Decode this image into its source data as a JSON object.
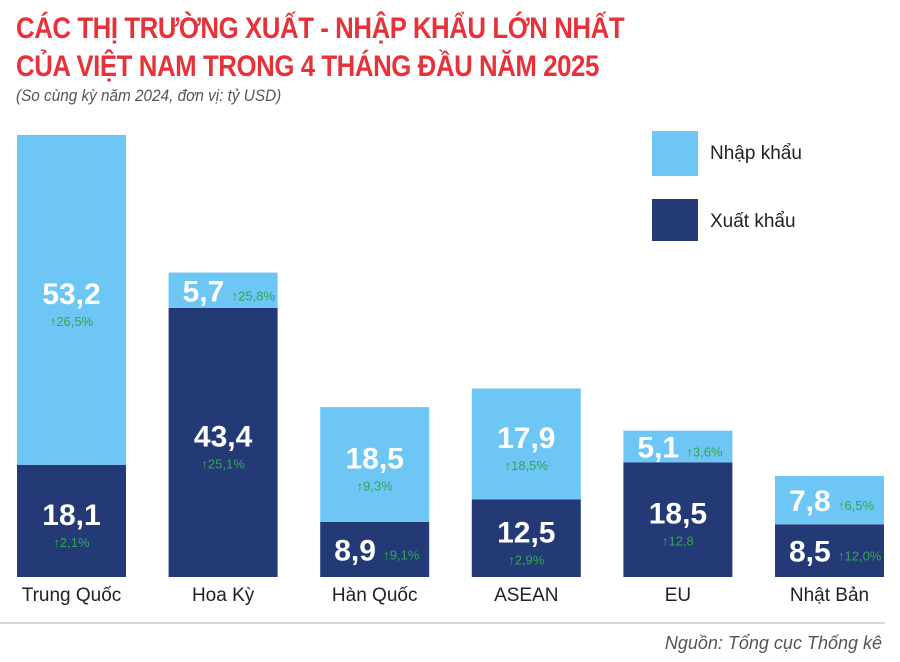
{
  "title_line1": "CÁC THỊ TRƯỜNG XUẤT - NHẬP KHẨU LỚN NHẤT",
  "title_line2": "CỦA VIỆT NAM TRONG 4 THÁNG ĐẦU NĂM 2025",
  "subtitle": "(So cùng kỳ năm 2024, đơn vị: tỷ USD)",
  "source": "Nguồn: Tổng cục Thống kê",
  "colors": {
    "title": "#e8323a",
    "import": "#6ec6f5",
    "export": "#243a76",
    "growth": "#2fa84f"
  },
  "chart_data": {
    "type": "bar",
    "stacked": true,
    "legend_position": "top-right",
    "grid": false,
    "categories": [
      "Trung Quốc",
      "Hoa Kỳ",
      "Hàn Quốc",
      "ASEAN",
      "EU",
      "Nhật Bản"
    ],
    "series": [
      {
        "name": "Xuất khẩu",
        "values": [
          18.1,
          43.4,
          8.9,
          12.5,
          18.5,
          8.5
        ],
        "labels": [
          "18,1",
          "43,4",
          "8,9",
          "12,5",
          "18,5",
          "8,5"
        ],
        "growth": [
          "2,1%",
          "25,1%",
          "9,1%",
          "2,9%",
          "12,8",
          "12,0%"
        ]
      },
      {
        "name": "Nhập khẩu",
        "values": [
          53.2,
          5.7,
          18.5,
          17.9,
          5.1,
          7.8
        ],
        "labels": [
          "53,2",
          "5,7",
          "18,5",
          "17,9",
          "5,1",
          "7,8"
        ],
        "growth": [
          "26,5%",
          "25,8%",
          "9,3%",
          "18,5%",
          "3,6%",
          "6,5%"
        ]
      }
    ]
  }
}
